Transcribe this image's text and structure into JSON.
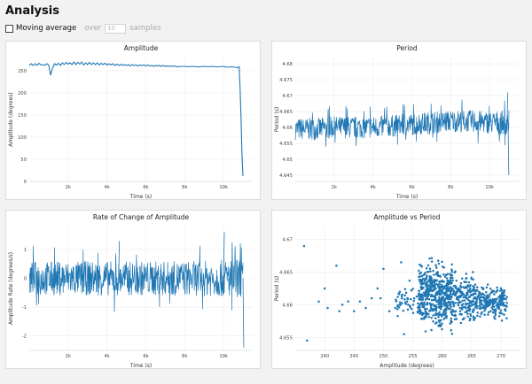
{
  "page": {
    "title": "Analysis"
  },
  "controls": {
    "moving_average_label": "Moving average",
    "over_label": "over",
    "window_value": "10",
    "samples_label": "samples"
  },
  "chart_data": [
    {
      "id": "amp",
      "type": "line",
      "title": "Amplitude",
      "xlabel": "Time (s)",
      "ylabel": "Amplitude (degrees)",
      "xlim": [
        0,
        11500
      ],
      "ylim": [
        0,
        280
      ],
      "xticks": [
        2000,
        4000,
        6000,
        8000,
        10000
      ],
      "xtick_labels": [
        "2k",
        "4k",
        "6k",
        "8k",
        "10k"
      ],
      "yticks": [
        0,
        50,
        100,
        150,
        200,
        250
      ],
      "color": "#1f77b4",
      "series": [
        {
          "x": [
            0,
            100,
            200,
            300,
            400,
            500,
            600,
            700,
            800,
            900,
            1000,
            1100,
            1200,
            1300,
            1400,
            1500,
            1600,
            1700,
            1800,
            1900,
            2000,
            2100,
            2200,
            2300,
            2400,
            2500,
            2600,
            2700,
            2800,
            2900,
            3000,
            3100,
            3200,
            3300,
            3400,
            3500,
            3600,
            3700,
            3800,
            3900,
            4000,
            4100,
            4200,
            4300,
            4400,
            4500,
            4600,
            4700,
            4800,
            4900,
            5000,
            5100,
            5200,
            5300,
            5400,
            5500,
            5600,
            5700,
            5800,
            5900,
            6000,
            6100,
            6200,
            6300,
            6400,
            6500,
            6600,
            6700,
            6800,
            6900,
            7000,
            7100,
            7200,
            7300,
            7400,
            7500,
            7600,
            7800,
            8000,
            8200,
            8400,
            8600,
            8800,
            9000,
            9200,
            9400,
            9600,
            9800,
            10000,
            10200,
            10400,
            10600,
            10700,
            10750,
            10800,
            10850,
            10900,
            10950,
            11000
          ],
          "y": [
            262,
            266,
            262,
            266,
            262,
            267,
            263,
            264,
            262,
            266,
            263,
            240,
            256,
            266,
            263,
            267,
            262,
            268,
            264,
            269,
            265,
            268,
            264,
            270,
            264,
            269,
            265,
            270,
            263,
            268,
            264,
            269,
            264,
            268,
            264,
            268,
            263,
            267,
            264,
            267,
            263,
            266,
            263,
            266,
            262,
            265,
            262,
            265,
            262,
            264,
            262,
            264,
            261,
            264,
            262,
            263,
            261,
            263,
            262,
            263,
            261,
            263,
            261,
            262,
            260,
            262,
            261,
            262,
            260,
            262,
            260,
            261,
            260,
            261,
            260,
            261,
            259,
            260,
            260,
            259,
            260,
            259,
            259,
            260,
            259,
            260,
            259,
            259,
            260,
            258,
            259,
            258,
            257,
            258,
            259,
            210,
            140,
            60,
            12
          ]
        }
      ]
    },
    {
      "id": "per",
      "type": "line",
      "title": "Period",
      "xlabel": "Time (s)",
      "ylabel": "Period (s)",
      "xlim": [
        0,
        11500
      ],
      "ylim": [
        4.643,
        4.682
      ],
      "xticks": [
        2000,
        4000,
        6000,
        8000,
        10000
      ],
      "xtick_labels": [
        "2k",
        "4k",
        "6k",
        "8k",
        "10k"
      ],
      "yticks": [
        4.645,
        4.65,
        4.655,
        4.66,
        4.665,
        4.67,
        4.675,
        4.68
      ],
      "ytick_labels": [
        "4.645",
        "4.65",
        "4.655",
        "4.66",
        "4.665",
        "4.67",
        "4.675",
        "4.68"
      ],
      "color": "#1f77b4",
      "band": {
        "x": [
          0,
          1000,
          2000,
          3000,
          4000,
          5000,
          6000,
          7000,
          8000,
          9000,
          10000,
          11000
        ],
        "center": [
          4.6595,
          4.6595,
          4.66,
          4.66,
          4.66,
          4.6605,
          4.661,
          4.6615,
          4.662,
          4.662,
          4.6615,
          4.6615
        ],
        "half_width": [
          0.0035,
          0.0035,
          0.0035,
          0.0035,
          0.0035,
          0.0035,
          0.0035,
          0.0035,
          0.0035,
          0.0035,
          0.0035,
          0.004
        ]
      },
      "outliers": [
        {
          "x": 10950,
          "y": 4.645
        },
        {
          "x": 10900,
          "y": 4.671
        }
      ]
    },
    {
      "id": "rate",
      "type": "line",
      "title": "Rate of Change of Amplitude",
      "xlabel": "Time (s)",
      "ylabel": "Amplitude Rate (degrees/s)",
      "xlim": [
        0,
        11500
      ],
      "ylim": [
        -2.5,
        1.8
      ],
      "xticks": [
        2000,
        4000,
        6000,
        8000,
        10000
      ],
      "xtick_labels": [
        "2k",
        "4k",
        "6k",
        "8k",
        "10k"
      ],
      "yticks": [
        -2,
        -1,
        0,
        1
      ],
      "color": "#1f77b4",
      "band": {
        "x": [
          0,
          2000,
          4000,
          6000,
          8000,
          10000,
          11000
        ],
        "center": [
          0,
          0,
          0,
          0,
          0,
          0,
          0
        ],
        "half_width": [
          0.6,
          0.6,
          0.6,
          0.6,
          0.6,
          0.65,
          0.7
        ]
      },
      "outliers": [
        {
          "x": 11000,
          "y": -2.4
        },
        {
          "x": 10000,
          "y": 1.6
        },
        {
          "x": 4600,
          "y": 1.3
        }
      ]
    },
    {
      "id": "scatter",
      "type": "scatter",
      "title": "Amplitude vs Period",
      "xlabel": "Amplitude (degrees)",
      "ylabel": "Period (s)",
      "xlim": [
        235,
        273
      ],
      "ylim": [
        4.653,
        4.672
      ],
      "xticks": [
        240,
        245,
        250,
        255,
        260,
        265,
        270
      ],
      "yticks": [
        4.655,
        4.66,
        4.665,
        4.67
      ],
      "ytick_labels": [
        "4.655",
        "4.66",
        "4.665",
        "4.67"
      ],
      "color": "#1f77b4",
      "points": [
        [
          236.5,
          4.669
        ],
        [
          237,
          4.6545
        ],
        [
          239,
          4.6605
        ],
        [
          240,
          4.6625
        ],
        [
          240.5,
          4.6595
        ],
        [
          242,
          4.666
        ],
        [
          242.5,
          4.659
        ],
        [
          243,
          4.66
        ],
        [
          244,
          4.6605
        ],
        [
          245,
          4.659
        ],
        [
          246,
          4.6605
        ],
        [
          247,
          4.6595
        ],
        [
          248,
          4.661
        ],
        [
          249,
          4.6625
        ],
        [
          249.5,
          4.661
        ],
        [
          250,
          4.6655
        ],
        [
          251,
          4.659
        ],
        [
          252,
          4.6595
        ],
        [
          253,
          4.6665
        ],
        [
          253.5,
          4.6555
        ],
        [
          254,
          4.6605
        ]
      ],
      "dense_regions": [
        {
          "x": [
            252,
            256
          ],
          "y": [
            4.657,
            4.664
          ],
          "count": 45
        },
        {
          "x": [
            256,
            262
          ],
          "y": [
            4.655,
            4.668
          ],
          "count": 520
        },
        {
          "x": [
            262,
            266
          ],
          "y": [
            4.656,
            4.666
          ],
          "count": 190
        },
        {
          "x": [
            266,
            271
          ],
          "y": [
            4.657,
            4.664
          ],
          "count": 210
        }
      ]
    }
  ]
}
